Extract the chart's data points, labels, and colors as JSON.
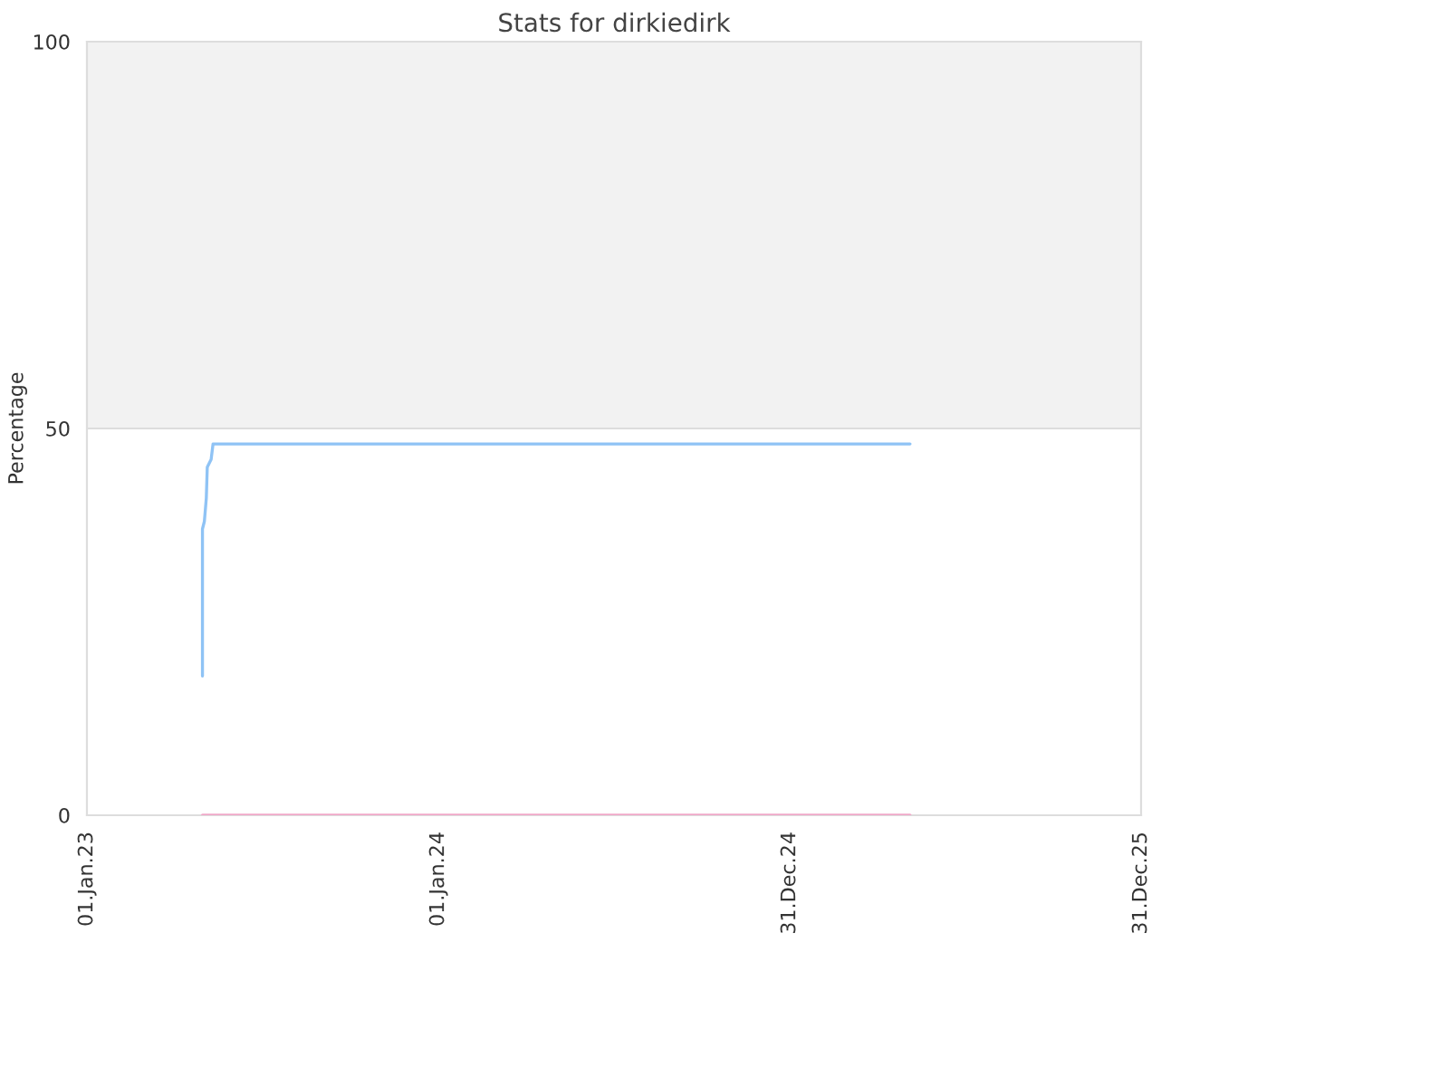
{
  "chart_data": {
    "type": "line",
    "title": "Stats for dirkiedirk",
    "ylabel": "Percentage",
    "series": [
      {
        "color": "#8fc3f5",
        "x": [
          "2023-05-01",
          "2023-05-01",
          "2023-05-03",
          "2023-05-05",
          "2023-05-06",
          "2023-05-10",
          "2023-05-12",
          "2025-05-05"
        ],
        "values": [
          18,
          37,
          38,
          41,
          45,
          46,
          48,
          48
        ]
      },
      {
        "color": "#f0a8c8",
        "x": [
          "2023-05-01",
          "2025-05-05"
        ],
        "values": [
          0,
          0
        ]
      }
    ],
    "xlim": [
      "2023-01-01",
      "2025-12-31"
    ],
    "xticks": [
      {
        "value": "2023-01-01",
        "label": "01.Jan.23"
      },
      {
        "value": "2024-01-01",
        "label": "01.Jan.24"
      },
      {
        "value": "2024-12-31",
        "label": "31.Dec.24"
      },
      {
        "value": "2025-12-31",
        "label": "31.Dec.25"
      }
    ],
    "ylim": [
      0,
      100
    ],
    "yticks": [
      0,
      50,
      100
    ],
    "bands": [
      {
        "axis": "y",
        "from": 50,
        "to": 100,
        "color": "#f2f2f2"
      }
    ],
    "grid": "y",
    "marker": "none",
    "line_style": "solid"
  }
}
